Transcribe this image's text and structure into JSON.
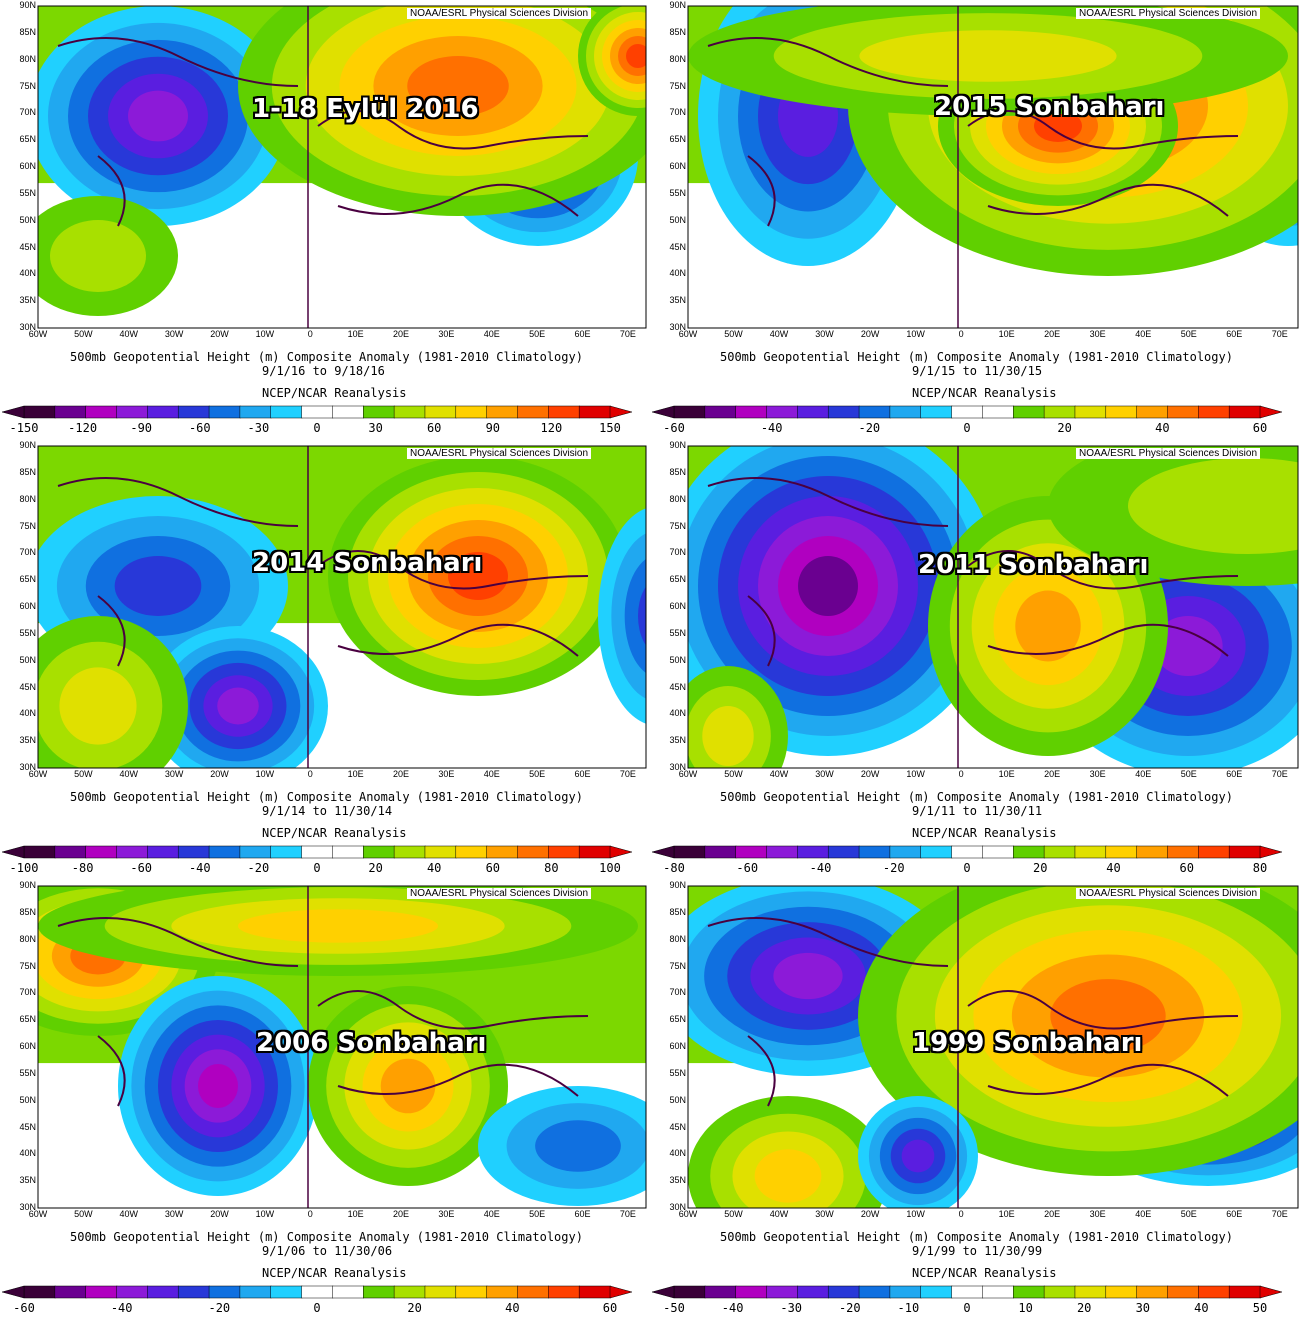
{
  "credit": "NOAA/ESRL Physical Sciences Division",
  "caption": "500mb Geopotential Height (m) Composite Anomaly (1981-2010 Climatology)",
  "source": "NCEP/NCAR Reanalysis",
  "lat_labels": [
    "90N",
    "85N",
    "80N",
    "75N",
    "70N",
    "65N",
    "60N",
    "55N",
    "50N",
    "45N",
    "40N",
    "35N",
    "30N"
  ],
  "lon_labels": [
    "60W",
    "50W",
    "40W",
    "30W",
    "20W",
    "10W",
    "0",
    "10E",
    "20E",
    "30E",
    "40E",
    "50E",
    "60E",
    "70E"
  ],
  "panels": [
    {
      "title": "1-18 Eylül 2016",
      "dates": "9/1/16   to 9/18/16",
      "scale": [
        "-150",
        "-120",
        "-90",
        "-60",
        "-30",
        "0",
        "30",
        "60",
        "90",
        "120",
        "150"
      ]
    },
    {
      "title": "2015 Sonbaharı",
      "dates": "9/1/15   to 11/30/15",
      "scale": [
        "-60",
        "-40",
        "-20",
        "0",
        "20",
        "40",
        "60"
      ]
    },
    {
      "title": "2014 Sonbaharı",
      "dates": "9/1/14   to 11/30/14",
      "scale": [
        "-100",
        "-80",
        "-60",
        "-40",
        "-20",
        "0",
        "20",
        "40",
        "60",
        "80",
        "100"
      ]
    },
    {
      "title": "2011 Sonbaharı",
      "dates": "9/1/11   to 11/30/11",
      "scale": [
        "-80",
        "-60",
        "-40",
        "-20",
        "0",
        "20",
        "40",
        "60",
        "80"
      ]
    },
    {
      "title": "2006 Sonbaharı",
      "dates": "9/1/06   to 11/30/06",
      "scale": [
        "-60",
        "-40",
        "-20",
        "0",
        "20",
        "40",
        "60"
      ]
    },
    {
      "title": "1999 Sonbaharı",
      "dates": "9/1/99   to 11/30/99",
      "scale": [
        "-50",
        "-40",
        "-30",
        "-20",
        "-10",
        "0",
        "10",
        "20",
        "30",
        "40",
        "50"
      ]
    }
  ],
  "colors": {
    "palette": [
      "#3a0038",
      "#6a0090",
      "#b000c0",
      "#8c1ad8",
      "#5a1ee0",
      "#2838d8",
      "#1070e0",
      "#20a8f0",
      "#20d0ff",
      "#ffffff",
      "#ffffff",
      "#60d000",
      "#a8e000",
      "#e0e000",
      "#ffd000",
      "#ffa000",
      "#ff7000",
      "#ff4000",
      "#e00000"
    ]
  }
}
